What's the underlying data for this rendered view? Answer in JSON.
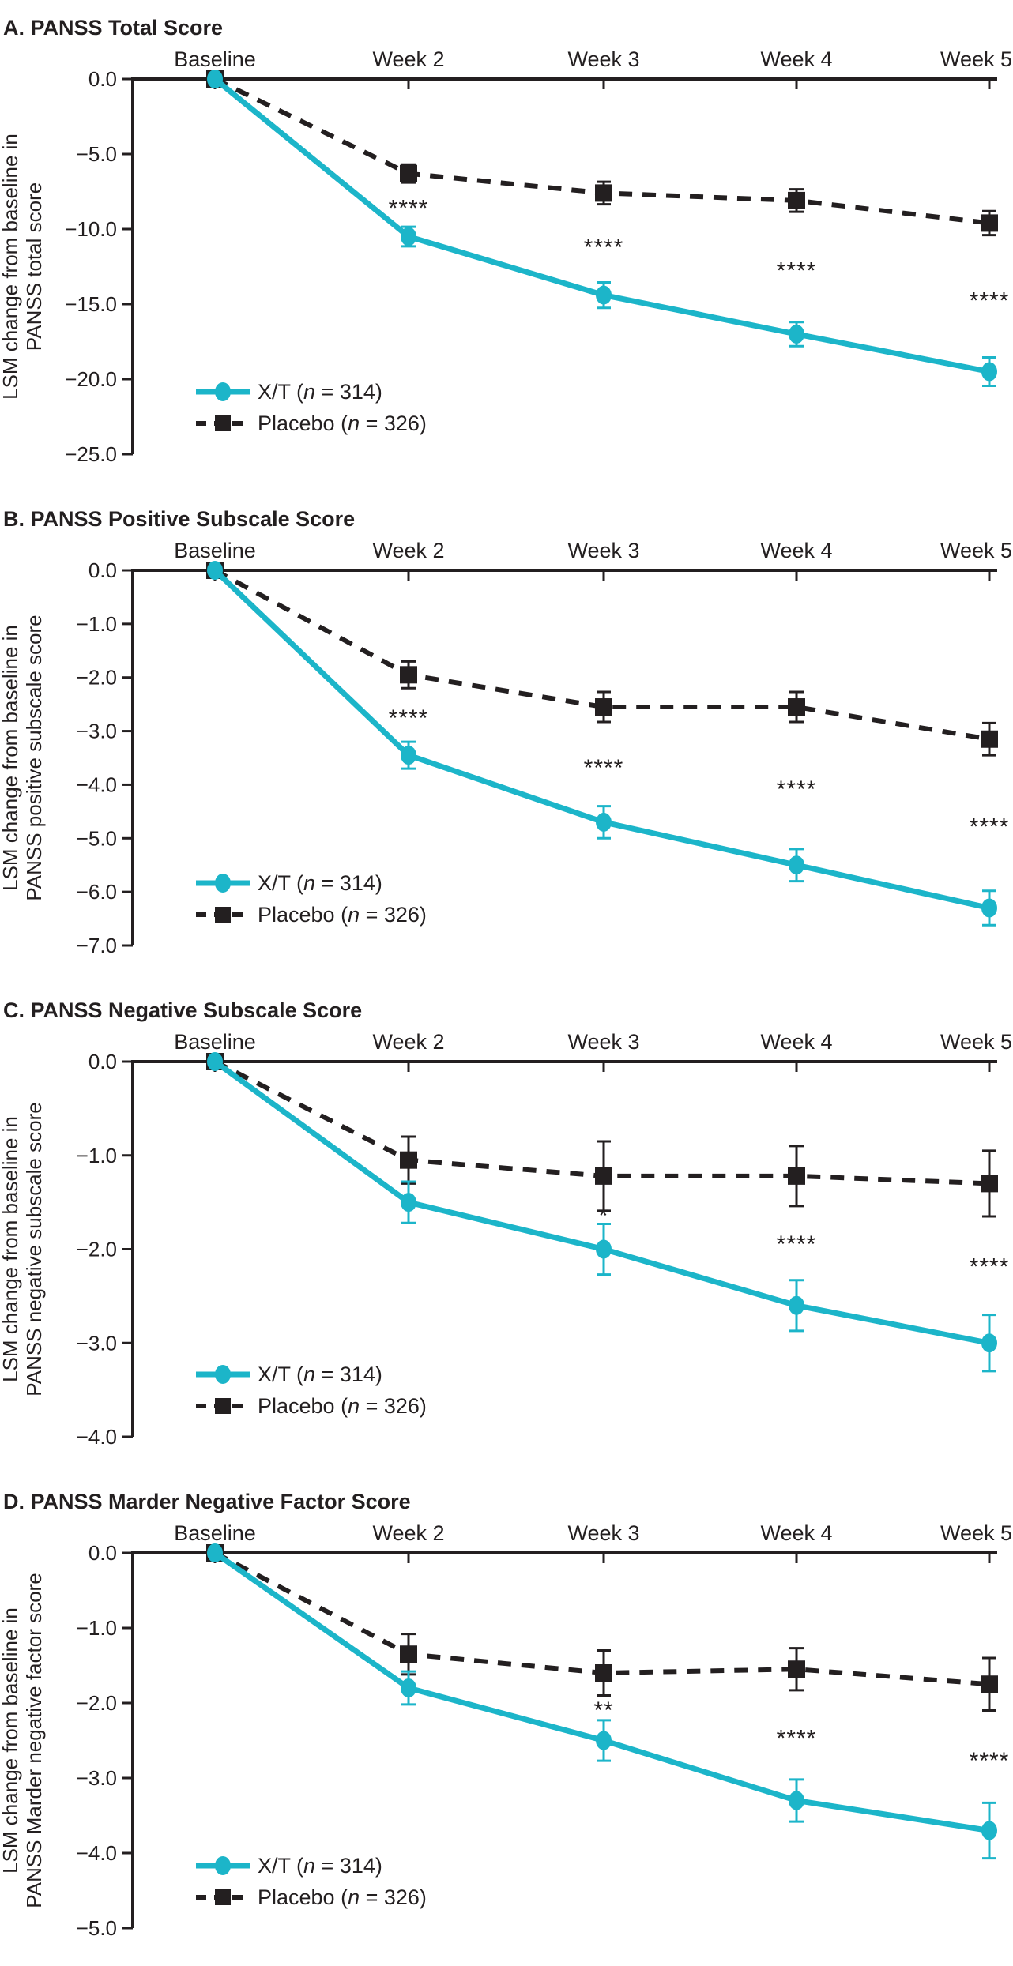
{
  "colors": {
    "xt": "#1cb5c9",
    "ink": "#231f20",
    "background": "#ffffff"
  },
  "x_labels": [
    "Baseline",
    "Week 2",
    "Week 3",
    "Week 4",
    "Week 5"
  ],
  "legend": [
    {
      "key": "xt",
      "pre": "X/T (",
      "it": "n",
      "post": " = 314)"
    },
    {
      "key": "placebo",
      "pre": "Placebo (",
      "it": "n",
      "post": " = 326)"
    }
  ],
  "chart_data": [
    {
      "type": "line",
      "title": "A. PANSS Total Score",
      "ylabel_line1": "LSM change from baseline in",
      "ylabel_line2": "PANSS total score",
      "categories": [
        "Baseline",
        "Week 2",
        "Week 3",
        "Week 4",
        "Week 5"
      ],
      "ylim": [
        -25,
        0
      ],
      "yticks": [
        0,
        -5,
        -10,
        -15,
        -20,
        -25
      ],
      "ytick_labels": [
        "0.0",
        "−5.0",
        "−10.0",
        "−15.0",
        "−20.0",
        "−25.0"
      ],
      "series": [
        {
          "name": "Placebo (n = 326)",
          "key": "placebo",
          "marker": "square",
          "line": "dashed",
          "values": [
            0,
            -6.3,
            -7.6,
            -8.1,
            -9.6
          ],
          "errors": [
            0.2,
            0.6,
            0.75,
            0.75,
            0.8
          ]
        },
        {
          "name": "X/T (n = 314)",
          "key": "xt",
          "marker": "circle",
          "line": "solid",
          "values": [
            0,
            -10.5,
            -14.4,
            -17.0,
            -19.5
          ],
          "errors": [
            0.2,
            0.65,
            0.85,
            0.8,
            0.95
          ]
        }
      ],
      "significance": [
        "",
        "****",
        "****",
        "****",
        "****"
      ]
    },
    {
      "type": "line",
      "title": "B. PANSS Positive Subscale Score",
      "ylabel_line1": "LSM change from baseline in",
      "ylabel_line2": "PANSS positive subscale score",
      "categories": [
        "Baseline",
        "Week 2",
        "Week 3",
        "Week 4",
        "Week 5"
      ],
      "ylim": [
        -7,
        0
      ],
      "yticks": [
        0,
        -1,
        -2,
        -3,
        -4,
        -5,
        -6,
        -7
      ],
      "ytick_labels": [
        "0.0",
        "−1.0",
        "−2.0",
        "−3.0",
        "−4.0",
        "−5.0",
        "−6.0",
        "−7.0"
      ],
      "series": [
        {
          "name": "Placebo (n = 326)",
          "key": "placebo",
          "marker": "square",
          "line": "dashed",
          "values": [
            0,
            -1.95,
            -2.55,
            -2.55,
            -3.15
          ],
          "errors": [
            0.05,
            0.25,
            0.28,
            0.28,
            0.3
          ]
        },
        {
          "name": "X/T (n = 314)",
          "key": "xt",
          "marker": "circle",
          "line": "solid",
          "values": [
            0,
            -3.45,
            -4.7,
            -5.5,
            -6.3
          ],
          "errors": [
            0.05,
            0.25,
            0.3,
            0.3,
            0.32
          ]
        }
      ],
      "significance": [
        "",
        "****",
        "****",
        "****",
        "****"
      ]
    },
    {
      "type": "line",
      "title": "C. PANSS Negative Subscale Score",
      "ylabel_line1": "LSM change from baseline in",
      "ylabel_line2": "PANSS negative subscale score",
      "categories": [
        "Baseline",
        "Week 2",
        "Week 3",
        "Week 4",
        "Week 5"
      ],
      "ylim": [
        -4,
        0
      ],
      "yticks": [
        0,
        -1,
        -2,
        -3,
        -4
      ],
      "ytick_labels": [
        "0.0",
        "−1.0",
        "−2.0",
        "−3.0",
        "−4.0"
      ],
      "series": [
        {
          "name": "Placebo (n = 326)",
          "key": "placebo",
          "marker": "square",
          "line": "dashed",
          "values": [
            0,
            -1.05,
            -1.22,
            -1.22,
            -1.3
          ],
          "errors": [
            0.04,
            0.25,
            0.37,
            0.32,
            0.35
          ]
        },
        {
          "name": "X/T (n = 314)",
          "key": "xt",
          "marker": "circle",
          "line": "solid",
          "values": [
            0,
            -1.5,
            -2.0,
            -2.6,
            -3.0
          ],
          "errors": [
            0.04,
            0.22,
            0.27,
            0.27,
            0.3
          ]
        }
      ],
      "significance": [
        "",
        "",
        "*",
        "****",
        "****"
      ]
    },
    {
      "type": "line",
      "title": "D. PANSS Marder Negative Factor Score",
      "ylabel_line1": "LSM change from baseline in",
      "ylabel_line2": "PANSS Marder negative factor score",
      "categories": [
        "Baseline",
        "Week 2",
        "Week 3",
        "Week 4",
        "Week 5"
      ],
      "ylim": [
        -5,
        0
      ],
      "yticks": [
        0,
        -1,
        -2,
        -3,
        -4,
        -5
      ],
      "ytick_labels": [
        "0.0",
        "−1.0",
        "−2.0",
        "−3.0",
        "−4.0",
        "−5.0"
      ],
      "series": [
        {
          "name": "Placebo (n = 326)",
          "key": "placebo",
          "marker": "square",
          "line": "dashed",
          "values": [
            0,
            -1.35,
            -1.6,
            -1.55,
            -1.75
          ],
          "errors": [
            0.04,
            0.27,
            0.3,
            0.28,
            0.35
          ]
        },
        {
          "name": "X/T (n = 314)",
          "key": "xt",
          "marker": "circle",
          "line": "solid",
          "values": [
            0,
            -1.8,
            -2.5,
            -3.3,
            -3.7
          ],
          "errors": [
            0.04,
            0.22,
            0.27,
            0.28,
            0.37
          ]
        }
      ],
      "significance": [
        "",
        "",
        "**",
        "****",
        "****"
      ]
    }
  ]
}
